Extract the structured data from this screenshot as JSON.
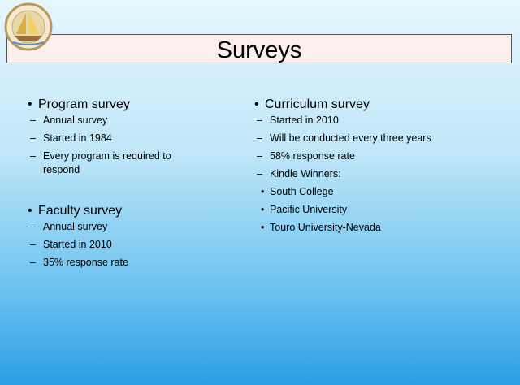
{
  "title": "Surveys",
  "columns": [
    {
      "items": [
        {
          "text": "Program survey",
          "subitems": [
            {
              "text": "Annual survey"
            },
            {
              "text": "Started in 1984"
            },
            {
              "text": "Every program is required to respond"
            }
          ]
        },
        {
          "text": "Faculty survey",
          "subitems": [
            {
              "text": "Annual survey"
            },
            {
              "text": "Started in 2010"
            },
            {
              "text": "35% response rate"
            }
          ]
        }
      ]
    },
    {
      "items": [
        {
          "text": "Curriculum survey",
          "subitems": [
            {
              "text": "Started in 2010"
            },
            {
              "text": "Will be conducted every three years"
            },
            {
              "text": "58% response rate"
            },
            {
              "text": "Kindle Winners:",
              "subitems": [
                {
                  "text": "South College"
                },
                {
                  "text": "Pacific University"
                },
                {
                  "text": "Touro University-Nevada"
                }
              ]
            }
          ]
        }
      ]
    }
  ]
}
